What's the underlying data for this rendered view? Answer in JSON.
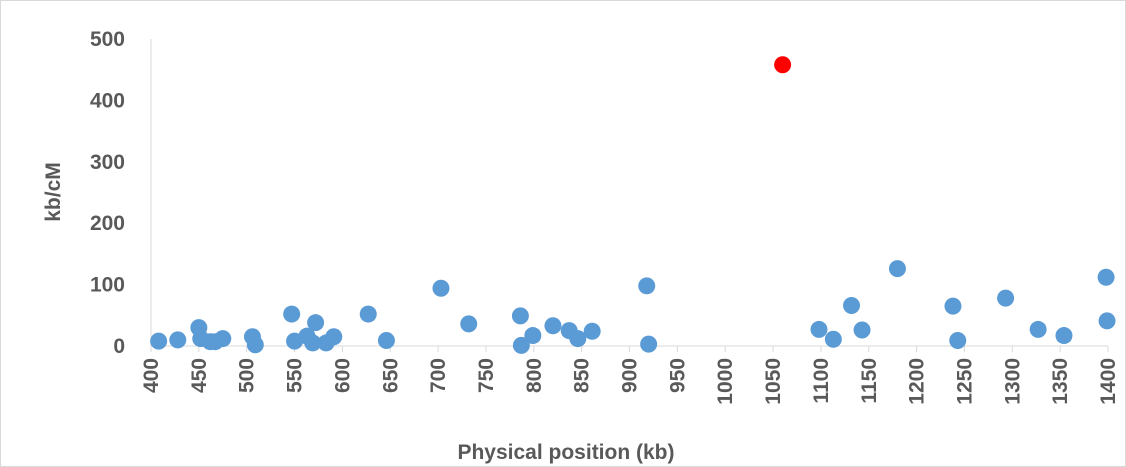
{
  "chart_data": {
    "type": "scatter",
    "title": "",
    "xlabel": "Physical position (kb)",
    "ylabel": "kb/cM",
    "xlim": [
      400,
      1400
    ],
    "ylim": [
      0,
      500
    ],
    "x_ticks": [
      400,
      450,
      500,
      550,
      600,
      650,
      700,
      750,
      800,
      850,
      900,
      950,
      1000,
      1050,
      1100,
      1150,
      1200,
      1250,
      1300,
      1350,
      1400
    ],
    "y_ticks": [
      0,
      100,
      200,
      300,
      400,
      500
    ],
    "grid": false,
    "legend": "none",
    "series": [
      {
        "color": "#5b9bd5",
        "points": [
          {
            "x": 408,
            "y": 8
          },
          {
            "x": 428,
            "y": 10
          },
          {
            "x": 450,
            "y": 30
          },
          {
            "x": 452,
            "y": 12
          },
          {
            "x": 462,
            "y": 7
          },
          {
            "x": 467,
            "y": 7
          },
          {
            "x": 475,
            "y": 12
          },
          {
            "x": 506,
            "y": 15
          },
          {
            "x": 509,
            "y": 2
          },
          {
            "x": 547,
            "y": 52
          },
          {
            "x": 550,
            "y": 8
          },
          {
            "x": 563,
            "y": 16
          },
          {
            "x": 569,
            "y": 5
          },
          {
            "x": 572,
            "y": 38
          },
          {
            "x": 583,
            "y": 5
          },
          {
            "x": 591,
            "y": 15
          },
          {
            "x": 627,
            "y": 52
          },
          {
            "x": 646,
            "y": 9
          },
          {
            "x": 703,
            "y": 94
          },
          {
            "x": 732,
            "y": 36
          },
          {
            "x": 786,
            "y": 49
          },
          {
            "x": 787,
            "y": 1
          },
          {
            "x": 799,
            "y": 17
          },
          {
            "x": 820,
            "y": 33
          },
          {
            "x": 837,
            "y": 25
          },
          {
            "x": 846,
            "y": 12
          },
          {
            "x": 861,
            "y": 24
          },
          {
            "x": 918,
            "y": 98
          },
          {
            "x": 920,
            "y": 3
          },
          {
            "x": 1098,
            "y": 27
          },
          {
            "x": 1113,
            "y": 11
          },
          {
            "x": 1132,
            "y": 66
          },
          {
            "x": 1143,
            "y": 26
          },
          {
            "x": 1180,
            "y": 126
          },
          {
            "x": 1238,
            "y": 65
          },
          {
            "x": 1243,
            "y": 9
          },
          {
            "x": 1293,
            "y": 78
          },
          {
            "x": 1327,
            "y": 27
          },
          {
            "x": 1354,
            "y": 17
          },
          {
            "x": 1398,
            "y": 112
          },
          {
            "x": 1399,
            "y": 41
          }
        ]
      },
      {
        "color": "#ff0000",
        "points": [
          {
            "x": 1060,
            "y": 458
          }
        ]
      }
    ]
  }
}
